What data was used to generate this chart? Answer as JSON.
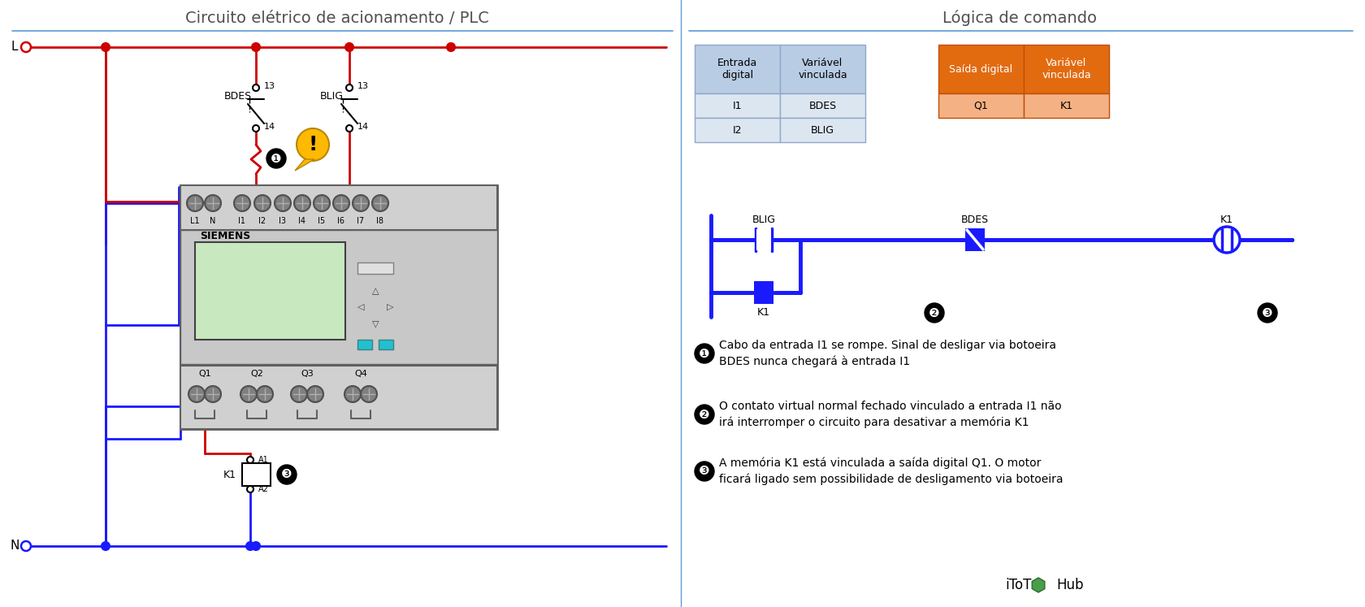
{
  "title_left": "Circuito elétrico de acionamento / PLC",
  "title_right": "Lógica de comando",
  "bg_color": "#ffffff",
  "divider_color": "#5b9bd5",
  "title_color": "#505050",
  "red": "#cc0000",
  "blue": "#1a1aff",
  "gray_plc": "#a0a0a0",
  "gray_dark": "#606060",
  "gray_light": "#d0d0d0",
  "green_screen": "#c8e8c0",
  "table_blue_header": "#b8cce4",
  "table_blue_row": "#dce6f1",
  "table_orange_header": "#e26b10",
  "table_orange_row": "#f4b183",
  "warning_yellow": "#FFB900",
  "ladder_blue": "#1a1aff",
  "ann_texts": [
    "Cabo da entrada I1 se rompe. Sinal de desligar via botoeira\nBDES nunca chegará à entrada I1",
    "O contato virtual normal fechado vinculado a entrada I1 não\nirá interromper o circuito para desativar a memória K1",
    "A memória K1 está vinculada a saída digital Q1. O motor\nficará ligado sem possibilidade de desligamento via botoeira"
  ]
}
